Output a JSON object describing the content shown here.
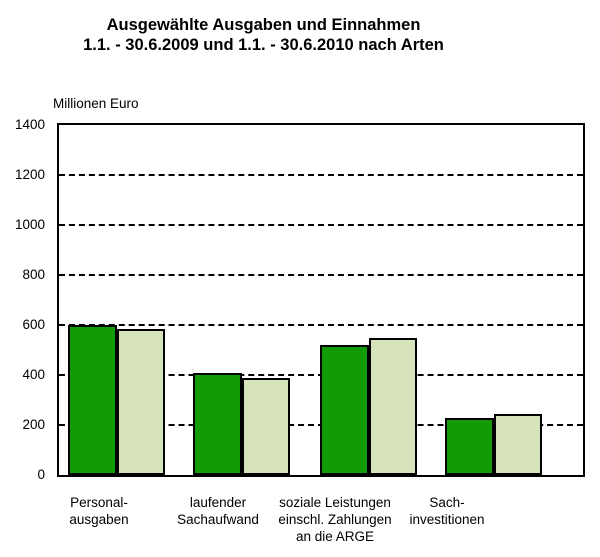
{
  "chart_data": {
    "type": "bar",
    "title": "Ausgewählte Ausgaben und Einnahmen",
    "subtitle": "1.1. - 30.6.2009 und 1.1. - 30.6.2010 nach Arten",
    "ylabel": "Millionen Euro",
    "xlabel": "",
    "ylim": [
      0,
      1400
    ],
    "ytick_step": 200,
    "yticks": [
      1400,
      1200,
      1000,
      800,
      600,
      400,
      200,
      0
    ],
    "grid": "horizontal-dashed",
    "legend_position": "none",
    "categories": [
      "Personalausgaben",
      "laufender Sachaufwand",
      "soziale Leistungen einschl. Zahlungen an die ARGE",
      "Sachinvestitionen"
    ],
    "category_label_lines": [
      [
        "Personal-",
        "ausgaben"
      ],
      [
        "laufender",
        "Sachaufwand"
      ],
      [
        "soziale Leistungen",
        "einschl. Zahlungen",
        "an die ARGE"
      ],
      [
        "Sach-",
        "investitionen"
      ]
    ],
    "series": [
      {
        "name": "1.1. - 30.6.2009",
        "color": "#129B06",
        "values": [
          600,
          410,
          520,
          230
        ]
      },
      {
        "name": "1.1. - 30.6.2010",
        "color": "#D7E4BA",
        "values": [
          585,
          390,
          548,
          245
        ]
      }
    ]
  },
  "colors": {
    "bar_2009": "#129B06",
    "bar_2010": "#D7E4BA",
    "axis": "#000000",
    "background": "#FFFFFF"
  }
}
